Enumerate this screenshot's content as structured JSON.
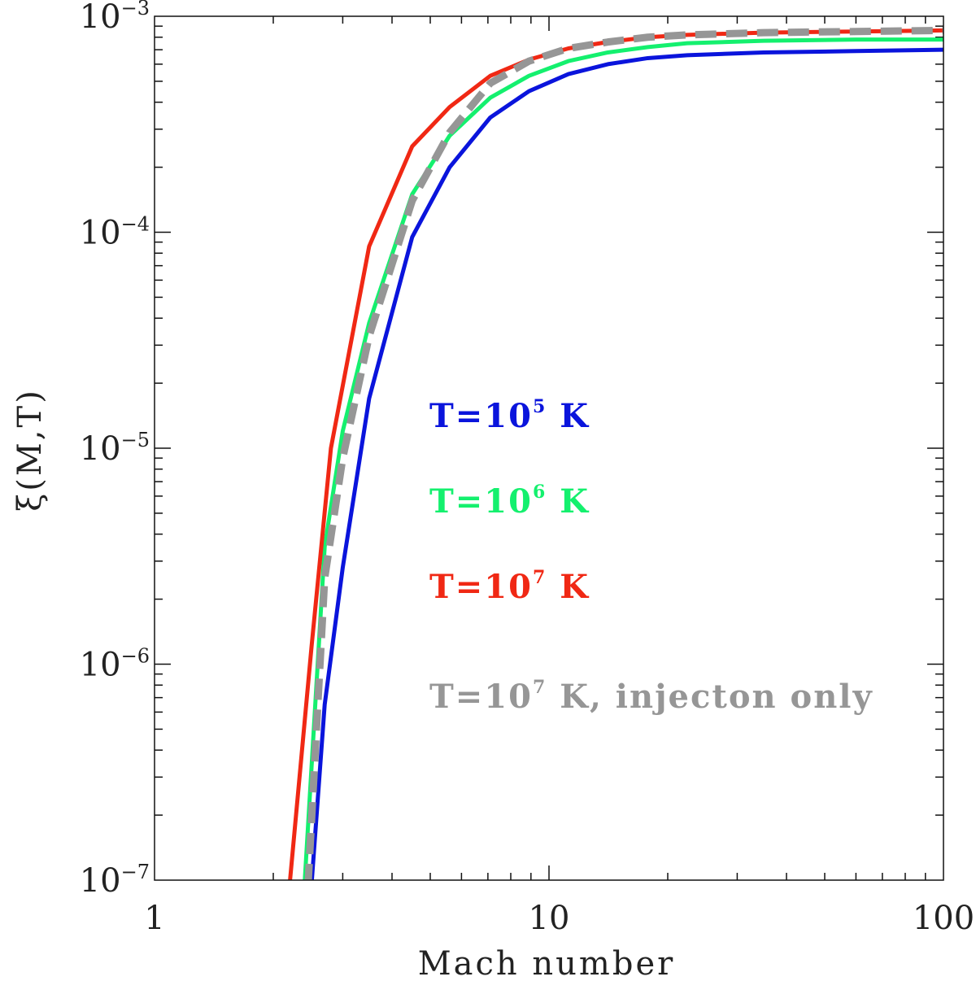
{
  "chart_data": {
    "type": "line",
    "xlabel": "Mach number",
    "ylabel": "ξ(M,T)",
    "x_scale": "log",
    "y_scale": "log",
    "xlim": [
      1,
      100
    ],
    "ylim": [
      1e-07,
      0.001
    ],
    "x_ticks": [
      {
        "value": 1,
        "label": "1"
      },
      {
        "value": 10,
        "label": "10"
      },
      {
        "value": 100,
        "label": "100"
      }
    ],
    "y_ticks": [
      {
        "value": 1e-07,
        "base": "10",
        "exp": "−7"
      },
      {
        "value": 1e-06,
        "base": "10",
        "exp": "−6"
      },
      {
        "value": 1e-05,
        "base": "10",
        "exp": "−5"
      },
      {
        "value": 0.0001,
        "base": "10",
        "exp": "−4"
      },
      {
        "value": 0.001,
        "base": "10",
        "exp": "−3"
      }
    ],
    "grid": false,
    "series": [
      {
        "label_parts": [
          "T=10",
          "5",
          " K"
        ],
        "color": "#0a14dc",
        "dash": false,
        "x": [
          2.5,
          2.7,
          3.0,
          3.5,
          4.5,
          5.6,
          7.1,
          8.9,
          11.2,
          14.1,
          17.8,
          22.4,
          35,
          60,
          100
        ],
        "y": [
          9.5e-08,
          6.5e-07,
          2.8e-06,
          1.7e-05,
          9.5e-05,
          0.0002,
          0.00034,
          0.00045,
          0.00054,
          0.0006,
          0.00064,
          0.00066,
          0.00068,
          0.00069,
          0.0007
        ]
      },
      {
        "label_parts": [
          "T=10",
          "6",
          " K"
        ],
        "color": "#14f06e",
        "dash": false,
        "x": [
          2.4,
          2.7,
          3.0,
          3.5,
          4.5,
          5.6,
          7.1,
          8.9,
          11.2,
          14.1,
          17.8,
          22.4,
          35,
          60,
          100
        ],
        "y": [
          9.5e-08,
          3.5e-06,
          1.2e-05,
          3.8e-05,
          0.00015,
          0.00028,
          0.00042,
          0.00053,
          0.00062,
          0.00068,
          0.00072,
          0.00075,
          0.00077,
          0.00078,
          0.00078
        ]
      },
      {
        "label_parts": [
          "T=10",
          "7",
          " K"
        ],
        "color": "#f02814",
        "dash": false,
        "x": [
          2.2,
          2.5,
          2.8,
          3.5,
          4.5,
          5.6,
          7.1,
          8.9,
          11.2,
          14.1,
          17.8,
          22.4,
          35,
          60,
          100
        ],
        "y": [
          9.5e-08,
          1.2e-06,
          1e-05,
          8.6e-05,
          0.00025,
          0.00038,
          0.00053,
          0.00063,
          0.00071,
          0.00076,
          0.0008,
          0.00082,
          0.00084,
          0.00085,
          0.00086
        ]
      },
      {
        "label_parts": [
          "T=10",
          "7",
          " K, injecton only"
        ],
        "color": "#969696",
        "dash": true,
        "x": [
          2.45,
          2.7,
          3.0,
          3.5,
          4.5,
          5.6,
          7.1,
          8.9,
          11.2,
          14.1,
          17.8,
          22.4,
          35,
          60,
          100
        ],
        "y": [
          9.5e-08,
          2.5e-06,
          9e-06,
          3.3e-05,
          0.00014,
          0.00029,
          0.00049,
          0.00062,
          0.00071,
          0.00076,
          0.0008,
          0.00082,
          0.00084,
          0.00085,
          0.00086
        ]
      }
    ]
  }
}
